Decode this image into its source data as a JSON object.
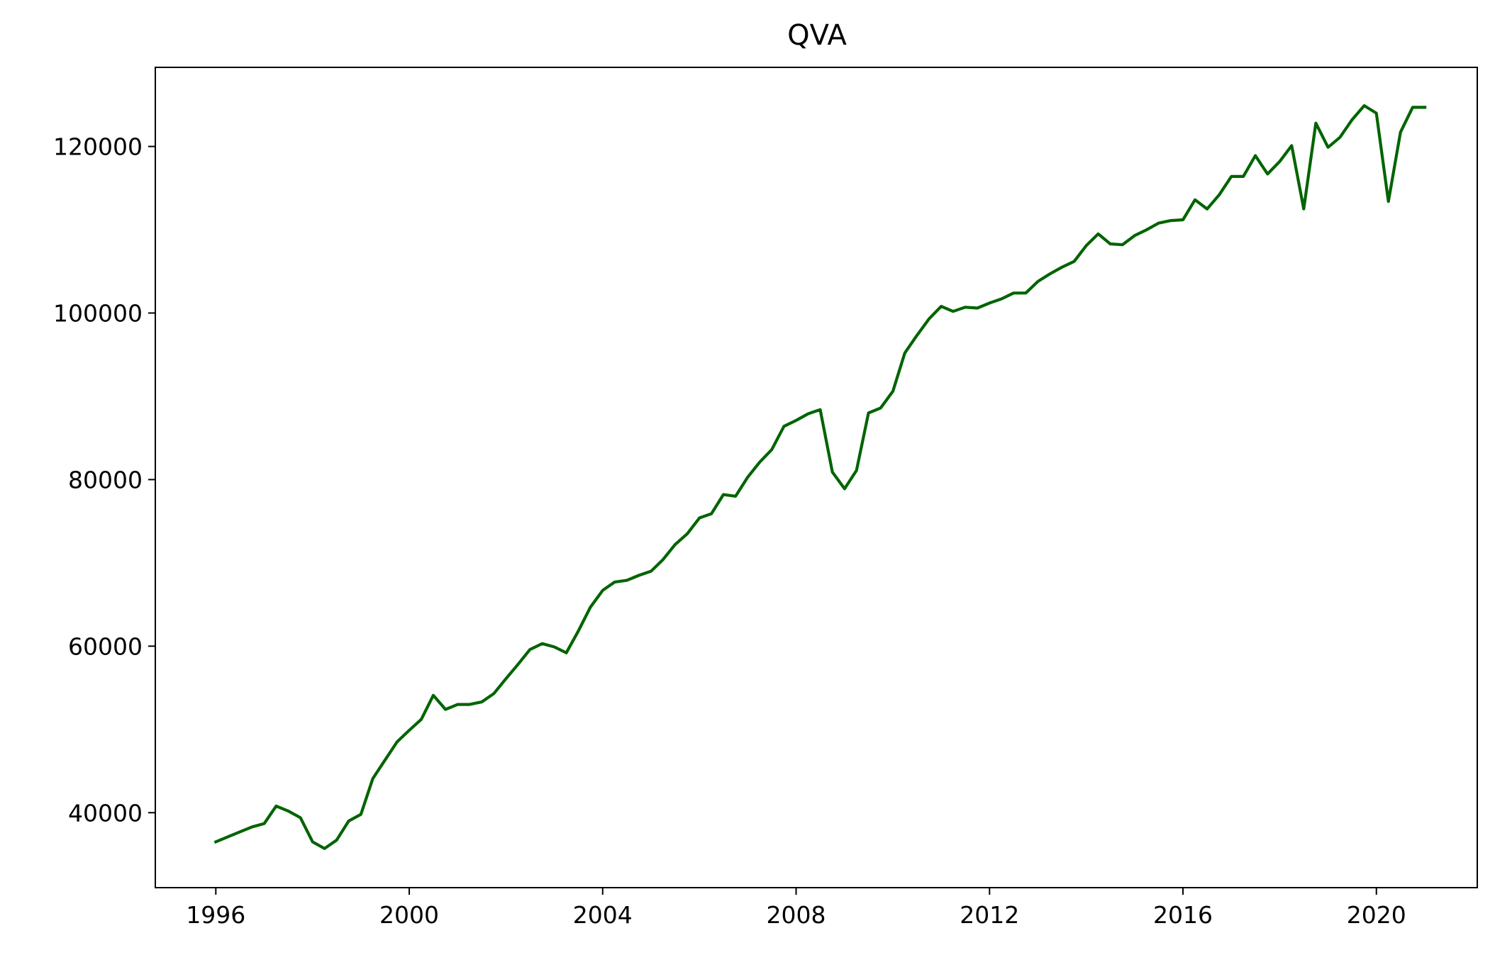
{
  "chart_data": {
    "type": "line",
    "title": "QVA",
    "xlabel": "",
    "ylabel": "",
    "x_ticks": [
      "1996",
      "2000",
      "2004",
      "2008",
      "2012",
      "2016",
      "2020"
    ],
    "y_ticks": [
      "40000",
      "60000",
      "80000",
      "100000",
      "120000"
    ],
    "xlim": [
      "1994-10-01",
      "2022-02-01"
    ],
    "ylim": [
      31000,
      129500
    ],
    "grid": false,
    "legend": "none",
    "line_color": "#006400",
    "series": [
      {
        "x": [
          "1996-01-01",
          "1996-04-01",
          "1996-07-01",
          "1996-10-01",
          "1997-01-01",
          "1997-04-01",
          "1997-07-01",
          "1997-10-01",
          "1998-01-01",
          "1998-04-01",
          "1998-07-01",
          "1998-10-01",
          "1999-01-01",
          "1999-04-01",
          "1999-07-01",
          "1999-10-01",
          "2000-01-01",
          "2000-04-01",
          "2000-07-01",
          "2000-10-01",
          "2001-01-01",
          "2001-04-01",
          "2001-07-01",
          "2001-10-01",
          "2002-01-01",
          "2002-04-01",
          "2002-07-01",
          "2002-10-01",
          "2003-01-01",
          "2003-04-01",
          "2003-07-01",
          "2003-10-01",
          "2004-01-01",
          "2004-04-01",
          "2004-07-01",
          "2004-10-01",
          "2005-01-01",
          "2005-04-01",
          "2005-07-01",
          "2005-10-01",
          "2006-01-01",
          "2006-04-01",
          "2006-07-01",
          "2006-10-01",
          "2007-01-01",
          "2007-04-01",
          "2007-07-01",
          "2007-10-01",
          "2008-01-01",
          "2008-04-01",
          "2008-07-01",
          "2008-10-01",
          "2009-01-01",
          "2009-04-01",
          "2009-07-01",
          "2009-10-01",
          "2010-01-01",
          "2010-04-01",
          "2010-07-01",
          "2010-10-01",
          "2011-01-01",
          "2011-04-01",
          "2011-07-01",
          "2011-10-01",
          "2012-01-01",
          "2012-04-01",
          "2012-07-01",
          "2012-10-01",
          "2013-01-01",
          "2013-04-01",
          "2013-07-01",
          "2013-10-01",
          "2014-01-01",
          "2014-04-01",
          "2014-07-01",
          "2014-10-01",
          "2015-01-01",
          "2015-04-01",
          "2015-07-01",
          "2015-10-01",
          "2016-01-01",
          "2016-04-01",
          "2016-07-01",
          "2016-10-01",
          "2017-01-01",
          "2017-04-01",
          "2017-07-01",
          "2017-10-01",
          "2018-01-01",
          "2018-04-01",
          "2018-07-01",
          "2018-10-01",
          "2019-01-01",
          "2019-04-01",
          "2019-07-01",
          "2019-10-01",
          "2020-01-01",
          "2020-04-01",
          "2020-07-01",
          "2020-10-01",
          "2021-01-01"
        ],
        "y": [
          36500,
          37100,
          37700,
          38300,
          38700,
          40800,
          40200,
          39400,
          36500,
          35700,
          36700,
          39000,
          39800,
          44100,
          46300,
          48500,
          49900,
          51200,
          54100,
          52400,
          53000,
          53000,
          53300,
          54300,
          56100,
          57800,
          59600,
          60300,
          59900,
          59200,
          61800,
          64700,
          66700,
          67700,
          67900,
          68500,
          69000,
          70400,
          72200,
          73500,
          75400,
          75900,
          78200,
          78000,
          80300,
          82100,
          83600,
          86400,
          87100,
          87900,
          88400,
          80900,
          78900,
          81100,
          88000,
          88600,
          90600,
          95200,
          97300,
          99300,
          100800,
          100200,
          100700,
          100600,
          101200,
          101700,
          102400,
          102400,
          103800,
          104700,
          105500,
          106200,
          108100,
          109500,
          108300,
          108200,
          109300,
          110000,
          110800,
          111100,
          111200,
          113600,
          112500,
          114200,
          116400,
          116400,
          118900,
          116700,
          118200,
          120100,
          112500,
          122800,
          119900,
          121100,
          123200,
          124900,
          124000,
          113400,
          121700,
          124700,
          124700
        ]
      }
    ]
  }
}
